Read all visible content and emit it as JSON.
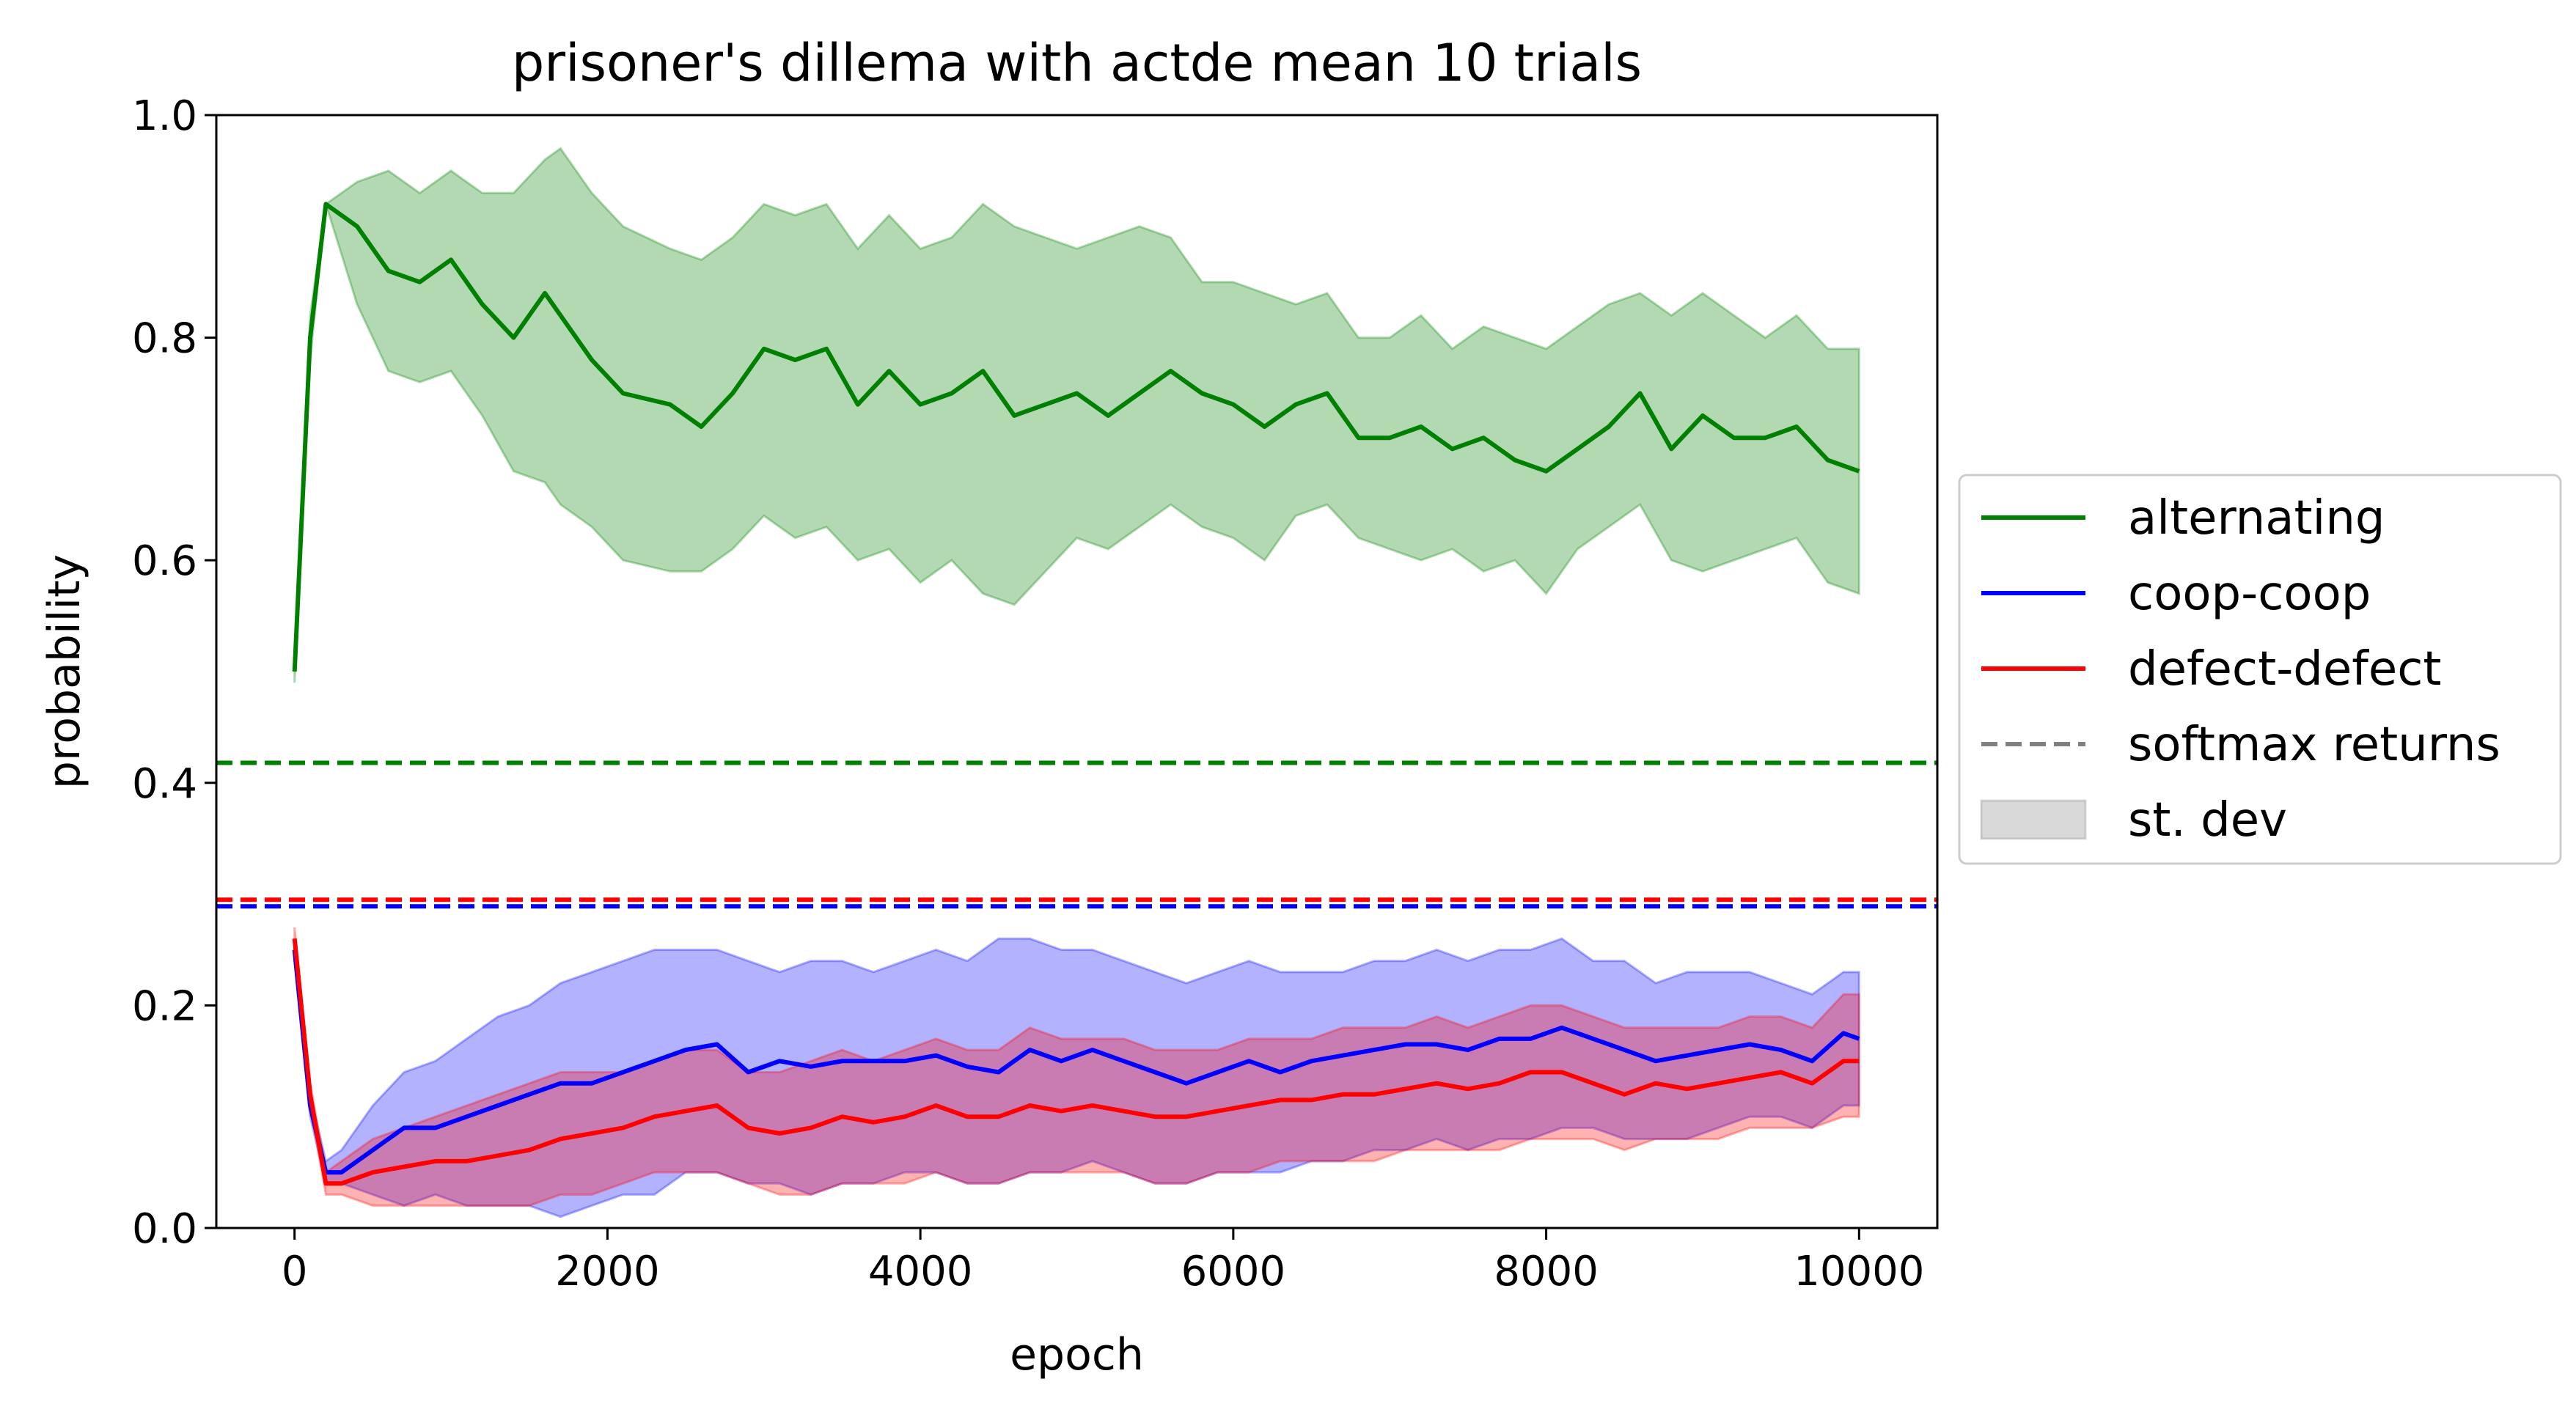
{
  "chart_data": {
    "type": "line",
    "title": "prisoner's dillema with actde mean 10 trials",
    "xlabel": "epoch",
    "ylabel": "probability",
    "xlim": [
      -500,
      10500
    ],
    "ylim": [
      0.0,
      1.0
    ],
    "xticks": [
      0,
      2000,
      4000,
      6000,
      8000,
      10000
    ],
    "xtick_labels": [
      "0",
      "2000",
      "4000",
      "6000",
      "8000",
      "10000"
    ],
    "yticks": [
      0.0,
      0.2,
      0.4,
      0.6,
      0.8,
      1.0
    ],
    "ytick_labels": [
      "0.0",
      "0.2",
      "0.4",
      "0.6",
      "0.8",
      "1.0"
    ],
    "grid": false,
    "legend_position": "center-left outside right",
    "series": [
      {
        "name": "alternating",
        "color": "#008000",
        "x": [
          0,
          100,
          200,
          400,
          600,
          800,
          1000,
          1200,
          1400,
          1600,
          1700,
          1900,
          2100,
          2400,
          2600,
          2800,
          3000,
          3200,
          3400,
          3600,
          3800,
          4000,
          4200,
          4400,
          4600,
          4800,
          5000,
          5200,
          5400,
          5600,
          5800,
          6000,
          6200,
          6400,
          6600,
          6800,
          7000,
          7200,
          7400,
          7600,
          7800,
          8000,
          8200,
          8400,
          8600,
          8800,
          9000,
          9200,
          9400,
          9600,
          9800,
          10000
        ],
        "y": [
          0.5,
          0.8,
          0.92,
          0.9,
          0.86,
          0.85,
          0.87,
          0.83,
          0.8,
          0.84,
          0.82,
          0.78,
          0.75,
          0.74,
          0.72,
          0.75,
          0.79,
          0.78,
          0.79,
          0.74,
          0.77,
          0.74,
          0.75,
          0.77,
          0.73,
          0.74,
          0.75,
          0.73,
          0.75,
          0.77,
          0.75,
          0.74,
          0.72,
          0.74,
          0.75,
          0.71,
          0.71,
          0.72,
          0.7,
          0.71,
          0.69,
          0.68,
          0.7,
          0.72,
          0.75,
          0.7,
          0.73,
          0.71,
          0.71,
          0.72,
          0.69,
          0.68
        ],
        "std_low": [
          0.49,
          0.78,
          0.92,
          0.83,
          0.77,
          0.76,
          0.77,
          0.73,
          0.68,
          0.67,
          0.65,
          0.63,
          0.6,
          0.59,
          0.59,
          0.61,
          0.64,
          0.62,
          0.63,
          0.6,
          0.61,
          0.58,
          0.6,
          0.57,
          0.56,
          0.59,
          0.62,
          0.61,
          0.63,
          0.65,
          0.63,
          0.62,
          0.6,
          0.64,
          0.65,
          0.62,
          0.61,
          0.6,
          0.61,
          0.59,
          0.6,
          0.57,
          0.61,
          0.63,
          0.65,
          0.6,
          0.59,
          0.6,
          0.61,
          0.62,
          0.58,
          0.57
        ],
        "std_high": [
          0.5,
          0.82,
          0.92,
          0.94,
          0.95,
          0.93,
          0.95,
          0.93,
          0.93,
          0.96,
          0.97,
          0.93,
          0.9,
          0.88,
          0.87,
          0.89,
          0.92,
          0.91,
          0.92,
          0.88,
          0.91,
          0.88,
          0.89,
          0.92,
          0.9,
          0.89,
          0.88,
          0.89,
          0.9,
          0.89,
          0.85,
          0.85,
          0.84,
          0.83,
          0.84,
          0.8,
          0.8,
          0.82,
          0.79,
          0.81,
          0.8,
          0.79,
          0.81,
          0.83,
          0.84,
          0.82,
          0.84,
          0.82,
          0.8,
          0.82,
          0.79,
          0.79
        ]
      },
      {
        "name": "coop-coop",
        "color": "#0000ff",
        "x": [
          0,
          100,
          200,
          300,
          500,
          700,
          900,
          1100,
          1300,
          1500,
          1700,
          1900,
          2100,
          2300,
          2500,
          2700,
          2900,
          3100,
          3300,
          3500,
          3700,
          3900,
          4100,
          4300,
          4500,
          4700,
          4900,
          5100,
          5300,
          5500,
          5700,
          5900,
          6100,
          6300,
          6500,
          6700,
          6900,
          7100,
          7300,
          7500,
          7700,
          7900,
          8100,
          8300,
          8500,
          8700,
          8900,
          9100,
          9300,
          9500,
          9700,
          9900,
          10000
        ],
        "y": [
          0.25,
          0.11,
          0.05,
          0.05,
          0.07,
          0.09,
          0.09,
          0.1,
          0.11,
          0.12,
          0.13,
          0.13,
          0.14,
          0.15,
          0.16,
          0.165,
          0.14,
          0.15,
          0.145,
          0.15,
          0.15,
          0.15,
          0.155,
          0.145,
          0.14,
          0.16,
          0.15,
          0.16,
          0.15,
          0.14,
          0.13,
          0.14,
          0.15,
          0.14,
          0.15,
          0.155,
          0.16,
          0.165,
          0.165,
          0.16,
          0.17,
          0.17,
          0.18,
          0.17,
          0.16,
          0.15,
          0.155,
          0.16,
          0.165,
          0.16,
          0.15,
          0.175,
          0.17
        ],
        "std_low": [
          0.24,
          0.1,
          0.04,
          0.04,
          0.03,
          0.02,
          0.03,
          0.02,
          0.02,
          0.02,
          0.01,
          0.02,
          0.03,
          0.03,
          0.05,
          0.05,
          0.04,
          0.04,
          0.03,
          0.04,
          0.04,
          0.05,
          0.05,
          0.04,
          0.04,
          0.05,
          0.05,
          0.06,
          0.05,
          0.04,
          0.04,
          0.05,
          0.05,
          0.05,
          0.06,
          0.06,
          0.07,
          0.07,
          0.08,
          0.07,
          0.08,
          0.08,
          0.09,
          0.09,
          0.08,
          0.08,
          0.08,
          0.09,
          0.1,
          0.1,
          0.09,
          0.11,
          0.11
        ],
        "std_high": [
          0.26,
          0.12,
          0.06,
          0.07,
          0.11,
          0.14,
          0.15,
          0.17,
          0.19,
          0.2,
          0.22,
          0.23,
          0.24,
          0.25,
          0.25,
          0.25,
          0.24,
          0.23,
          0.24,
          0.24,
          0.23,
          0.24,
          0.25,
          0.24,
          0.26,
          0.26,
          0.25,
          0.25,
          0.24,
          0.23,
          0.22,
          0.23,
          0.24,
          0.23,
          0.23,
          0.23,
          0.24,
          0.24,
          0.25,
          0.24,
          0.25,
          0.25,
          0.26,
          0.24,
          0.24,
          0.22,
          0.23,
          0.23,
          0.23,
          0.22,
          0.21,
          0.23,
          0.23
        ]
      },
      {
        "name": "defect-defect",
        "color": "#ff0000",
        "x": [
          0,
          100,
          200,
          300,
          500,
          700,
          900,
          1100,
          1300,
          1500,
          1700,
          1900,
          2100,
          2300,
          2500,
          2700,
          2900,
          3100,
          3300,
          3500,
          3700,
          3900,
          4100,
          4300,
          4500,
          4700,
          4900,
          5100,
          5300,
          5500,
          5700,
          5900,
          6100,
          6300,
          6500,
          6700,
          6900,
          7100,
          7300,
          7500,
          7700,
          7900,
          8100,
          8300,
          8500,
          8700,
          8900,
          9100,
          9300,
          9500,
          9700,
          9900,
          10000
        ],
        "y": [
          0.26,
          0.12,
          0.04,
          0.04,
          0.05,
          0.055,
          0.06,
          0.06,
          0.065,
          0.07,
          0.08,
          0.085,
          0.09,
          0.1,
          0.105,
          0.11,
          0.09,
          0.085,
          0.09,
          0.1,
          0.095,
          0.1,
          0.11,
          0.1,
          0.1,
          0.11,
          0.105,
          0.11,
          0.105,
          0.1,
          0.1,
          0.105,
          0.11,
          0.115,
          0.115,
          0.12,
          0.12,
          0.125,
          0.13,
          0.125,
          0.13,
          0.14,
          0.14,
          0.13,
          0.12,
          0.13,
          0.125,
          0.13,
          0.135,
          0.14,
          0.13,
          0.15,
          0.15
        ],
        "std_low": [
          0.25,
          0.11,
          0.03,
          0.03,
          0.02,
          0.02,
          0.02,
          0.02,
          0.02,
          0.02,
          0.03,
          0.03,
          0.04,
          0.05,
          0.05,
          0.05,
          0.04,
          0.03,
          0.03,
          0.04,
          0.04,
          0.04,
          0.05,
          0.04,
          0.04,
          0.05,
          0.05,
          0.05,
          0.05,
          0.04,
          0.04,
          0.05,
          0.05,
          0.06,
          0.06,
          0.06,
          0.06,
          0.07,
          0.07,
          0.07,
          0.07,
          0.08,
          0.08,
          0.08,
          0.07,
          0.08,
          0.08,
          0.08,
          0.09,
          0.09,
          0.09,
          0.1,
          0.1
        ],
        "std_high": [
          0.27,
          0.13,
          0.05,
          0.06,
          0.08,
          0.09,
          0.1,
          0.11,
          0.12,
          0.13,
          0.14,
          0.14,
          0.14,
          0.15,
          0.16,
          0.16,
          0.14,
          0.14,
          0.15,
          0.16,
          0.15,
          0.16,
          0.17,
          0.16,
          0.16,
          0.18,
          0.17,
          0.17,
          0.17,
          0.16,
          0.16,
          0.16,
          0.17,
          0.17,
          0.17,
          0.18,
          0.18,
          0.18,
          0.19,
          0.18,
          0.19,
          0.2,
          0.2,
          0.19,
          0.18,
          0.18,
          0.18,
          0.18,
          0.19,
          0.19,
          0.18,
          0.21,
          0.21
        ]
      }
    ],
    "reference_lines": [
      {
        "series": "alternating",
        "y": 0.418,
        "color": "#008000",
        "style": "dashed"
      },
      {
        "series": "defect-defect",
        "y": 0.295,
        "color": "#ff0000",
        "style": "dashed"
      },
      {
        "series": "coop-coop",
        "y": 0.289,
        "color": "#0000ff",
        "style": "dashed"
      }
    ],
    "legend": [
      {
        "label": "alternating",
        "kind": "line",
        "color": "#008000"
      },
      {
        "label": "coop-coop",
        "kind": "line",
        "color": "#0000ff"
      },
      {
        "label": "defect-defect",
        "kind": "line",
        "color": "#ff0000"
      },
      {
        "label": "softmax returns",
        "kind": "dashed",
        "color": "#808080"
      },
      {
        "label": "st. dev",
        "kind": "patch",
        "color": "#808080"
      }
    ]
  }
}
